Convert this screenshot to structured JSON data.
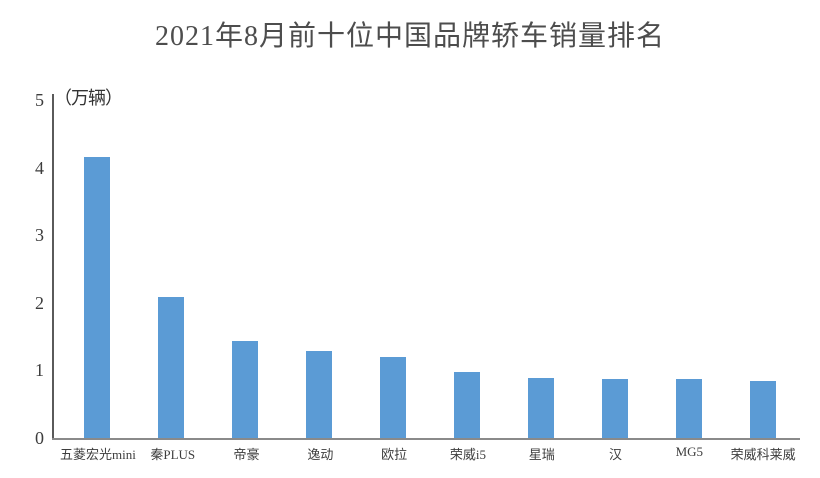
{
  "chart_data": {
    "type": "bar",
    "title": "2021年8月前十位中国品牌轿车销量排名",
    "unit_label": "（万辆）",
    "ylabel": "万辆",
    "xlabel": "",
    "categories": [
      "五菱宏光mini",
      "秦PLUS",
      "帝豪",
      "逸动",
      "欧拉",
      "荣威i5",
      "星瑞",
      "汉",
      "MG5",
      "荣威科莱威"
    ],
    "values": [
      4.16,
      2.08,
      1.43,
      1.28,
      1.2,
      0.98,
      0.89,
      0.87,
      0.87,
      0.85
    ],
    "ylim": [
      0,
      5
    ],
    "yticks": [
      0,
      1,
      2,
      3,
      4,
      5
    ],
    "grid": false,
    "legend": null,
    "bar_color": "#5b9bd5"
  },
  "colors": {
    "background": "#ffffff",
    "bar": "#5b9bd5",
    "title_text": "#4d4d4d",
    "tick_text": "#3d3d3d",
    "y_axis_line": "#5a5a5a",
    "x_axis_line": "#8a8a8a"
  }
}
